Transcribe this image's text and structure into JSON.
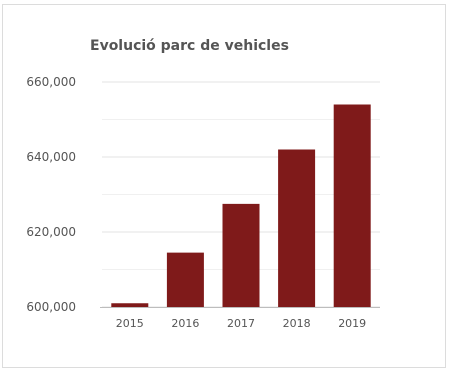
{
  "chart_data": {
    "type": "bar",
    "title": "Evolució parc de vehicles",
    "xlabel": "",
    "ylabel": "",
    "categories": [
      "2015",
      "2016",
      "2017",
      "2018",
      "2019"
    ],
    "values": [
      601000,
      614500,
      627500,
      642000,
      654000
    ],
    "ylim": [
      600000,
      660000
    ],
    "yticks": [
      600000,
      620000,
      640000,
      660000
    ],
    "ytick_labels": [
      "600,000",
      "620,000",
      "640,000",
      "660,000"
    ],
    "grid": true,
    "legend": "none",
    "bar_color": "#7f1a1a"
  }
}
